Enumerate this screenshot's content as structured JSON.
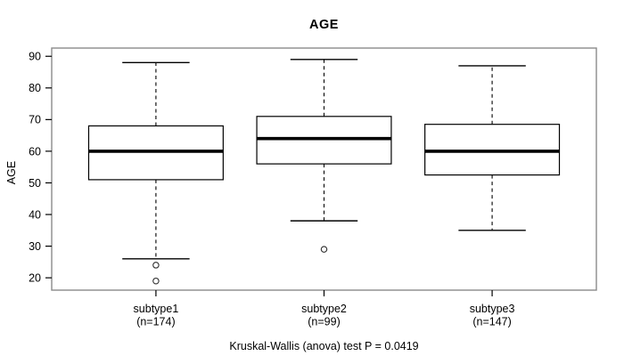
{
  "title": "AGE",
  "chart_data": {
    "type": "boxplot",
    "title": "AGE",
    "ylabel": "AGE",
    "xlabel": "",
    "caption": "Kruskal-Wallis (anova) test P = 0.0419",
    "grid": false,
    "ylim": [
      16.1,
      92.6
    ],
    "xlim": [
      0.38,
      3.62
    ],
    "yticks": [
      20,
      30,
      40,
      50,
      60,
      70,
      80,
      90
    ],
    "frame_color": "#8a8a8a",
    "line_color": "#000000",
    "box_fill": "#ffffff",
    "groups": [
      {
        "x": 1,
        "label": "subtype1",
        "n_label": "(n=174)",
        "n": 174,
        "whisker_low": 26,
        "q1": 51,
        "median": 60,
        "q3": 68,
        "whisker_high": 88,
        "outliers": [
          24,
          19
        ]
      },
      {
        "x": 2,
        "label": "subtype2",
        "n_label": "(n=99)",
        "n": 99,
        "whisker_low": 38,
        "q1": 56,
        "median": 64,
        "q3": 71,
        "whisker_high": 89,
        "outliers": [
          29
        ]
      },
      {
        "x": 3,
        "label": "subtype3",
        "n_label": "(n=147)",
        "n": 147,
        "whisker_low": 35,
        "q1": 52.5,
        "median": 60,
        "q3": 68.5,
        "whisker_high": 87,
        "outliers": []
      }
    ]
  }
}
